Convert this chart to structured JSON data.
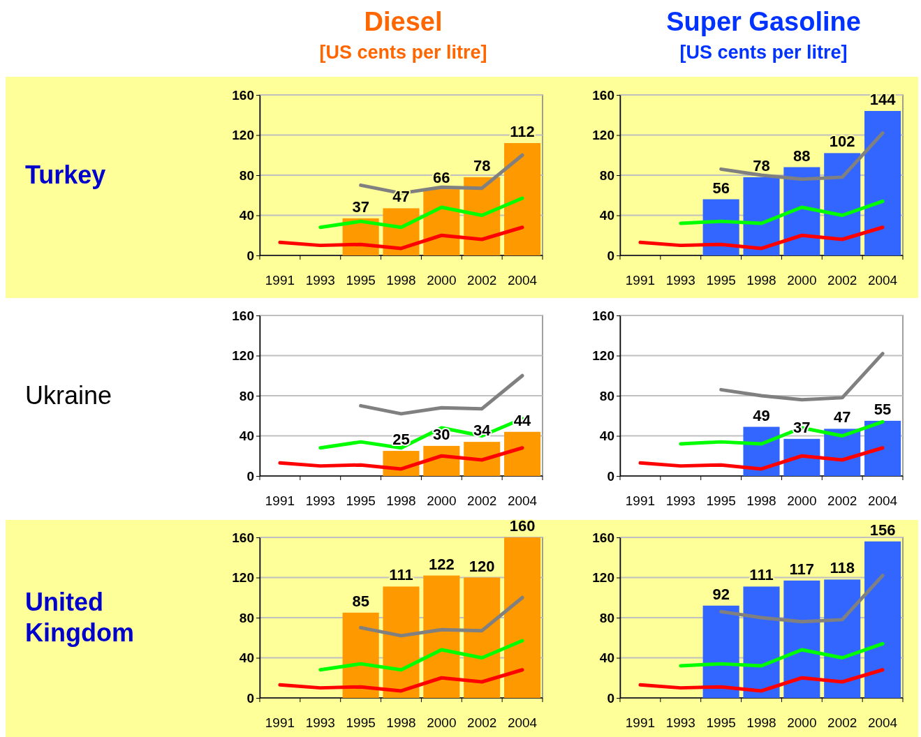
{
  "chart_data": [
    {
      "type": "bar",
      "title": "Diesel",
      "subtitle": "[US cents per litre]",
      "ylabel": "Turkey",
      "categories": [
        "1991",
        "1993",
        "1995",
        "1998",
        "2000",
        "2002",
        "2004"
      ],
      "ylim": [
        0,
        160
      ],
      "yticks": [
        0,
        40,
        80,
        120,
        160
      ],
      "grid": "y",
      "series": [
        {
          "color": "#ff9900",
          "values": [
            null,
            null,
            37,
            47,
            66,
            78,
            112
          ],
          "value_labels": [
            null,
            null,
            "37",
            "47",
            "66",
            "78",
            "112"
          ]
        },
        {
          "type": "line",
          "color": "#ff0000",
          "values": [
            13,
            10,
            11,
            7,
            20,
            16,
            28
          ]
        },
        {
          "type": "line",
          "color": "#00ff00",
          "values": [
            null,
            28,
            34,
            28,
            48,
            40,
            57
          ]
        },
        {
          "type": "line",
          "color": "#808080",
          "values": [
            null,
            null,
            70,
            62,
            68,
            67,
            100
          ]
        }
      ]
    },
    {
      "type": "bar",
      "title": "Super Gasoline",
      "subtitle": "[US cents per litre]",
      "categories": [
        "1991",
        "1993",
        "1995",
        "1998",
        "2000",
        "2002",
        "2004"
      ],
      "ylim": [
        0,
        160
      ],
      "yticks": [
        0,
        40,
        80,
        120,
        160
      ],
      "grid": "y",
      "series": [
        {
          "color": "#3366ff",
          "values": [
            null,
            null,
            56,
            78,
            88,
            102,
            144
          ],
          "value_labels": [
            null,
            null,
            "56",
            "78",
            "88",
            "102",
            "144"
          ]
        },
        {
          "type": "line",
          "color": "#ff0000",
          "values": [
            13,
            10,
            11,
            7,
            20,
            16,
            28
          ]
        },
        {
          "type": "line",
          "color": "#00ff00",
          "values": [
            null,
            32,
            34,
            32,
            48,
            40,
            54
          ]
        },
        {
          "type": "line",
          "color": "#808080",
          "values": [
            null,
            null,
            86,
            80,
            76,
            78,
            122
          ]
        }
      ]
    },
    {
      "type": "bar",
      "ylabel": "Ukraine",
      "categories": [
        "1991",
        "1993",
        "1995",
        "1998",
        "2000",
        "2002",
        "2004"
      ],
      "ylim": [
        0,
        160
      ],
      "yticks": [
        0,
        40,
        80,
        120,
        160
      ],
      "grid": "y",
      "series": [
        {
          "color": "#ff9900",
          "values": [
            null,
            null,
            null,
            25,
            30,
            34,
            44
          ],
          "value_labels": [
            null,
            null,
            null,
            "25",
            "30",
            "34",
            "44"
          ]
        },
        {
          "type": "line",
          "color": "#ff0000",
          "values": [
            13,
            10,
            11,
            7,
            20,
            16,
            28
          ]
        },
        {
          "type": "line",
          "color": "#00ff00",
          "values": [
            null,
            28,
            34,
            28,
            48,
            40,
            57
          ]
        },
        {
          "type": "line",
          "color": "#808080",
          "values": [
            null,
            null,
            70,
            62,
            68,
            67,
            100
          ]
        }
      ]
    },
    {
      "type": "bar",
      "categories": [
        "1991",
        "1993",
        "1995",
        "1998",
        "2000",
        "2002",
        "2004"
      ],
      "ylim": [
        0,
        160
      ],
      "yticks": [
        0,
        40,
        80,
        120,
        160
      ],
      "grid": "y",
      "series": [
        {
          "color": "#3366ff",
          "values": [
            null,
            null,
            null,
            49,
            37,
            47,
            55
          ],
          "value_labels": [
            null,
            null,
            null,
            "49",
            "37",
            "47",
            "55"
          ]
        },
        {
          "type": "line",
          "color": "#ff0000",
          "values": [
            13,
            10,
            11,
            7,
            20,
            16,
            28
          ]
        },
        {
          "type": "line",
          "color": "#00ff00",
          "values": [
            null,
            32,
            34,
            32,
            48,
            40,
            54
          ]
        },
        {
          "type": "line",
          "color": "#808080",
          "values": [
            null,
            null,
            86,
            80,
            76,
            78,
            122
          ]
        }
      ]
    },
    {
      "type": "bar",
      "ylabel": "United Kingdom",
      "categories": [
        "1991",
        "1993",
        "1995",
        "1998",
        "2000",
        "2002",
        "2004"
      ],
      "ylim": [
        0,
        160
      ],
      "yticks": [
        0,
        40,
        80,
        120,
        160
      ],
      "grid": "y",
      "series": [
        {
          "color": "#ff9900",
          "values": [
            null,
            null,
            85,
            111,
            122,
            120,
            160
          ],
          "value_labels": [
            null,
            null,
            "85",
            "111",
            "122",
            "120",
            "160"
          ]
        },
        {
          "type": "line",
          "color": "#ff0000",
          "values": [
            13,
            10,
            11,
            7,
            20,
            16,
            28
          ]
        },
        {
          "type": "line",
          "color": "#00ff00",
          "values": [
            null,
            28,
            34,
            28,
            48,
            40,
            57
          ]
        },
        {
          "type": "line",
          "color": "#808080",
          "values": [
            null,
            null,
            70,
            62,
            68,
            67,
            100
          ]
        }
      ]
    },
    {
      "type": "bar",
      "categories": [
        "1991",
        "1993",
        "1995",
        "1998",
        "2000",
        "2002",
        "2004"
      ],
      "ylim": [
        0,
        160
      ],
      "yticks": [
        0,
        40,
        80,
        120,
        160
      ],
      "grid": "y",
      "series": [
        {
          "color": "#3366ff",
          "values": [
            null,
            null,
            92,
            111,
            117,
            118,
            156
          ],
          "value_labels": [
            null,
            null,
            "92",
            "111",
            "117",
            "118",
            "156"
          ]
        },
        {
          "type": "line",
          "color": "#ff0000",
          "values": [
            13,
            10,
            11,
            7,
            20,
            16,
            28
          ]
        },
        {
          "type": "line",
          "color": "#00ff00",
          "values": [
            null,
            32,
            34,
            32,
            48,
            40,
            54
          ]
        },
        {
          "type": "line",
          "color": "#808080",
          "values": [
            null,
            null,
            86,
            80,
            76,
            78,
            122
          ]
        }
      ]
    }
  ]
}
